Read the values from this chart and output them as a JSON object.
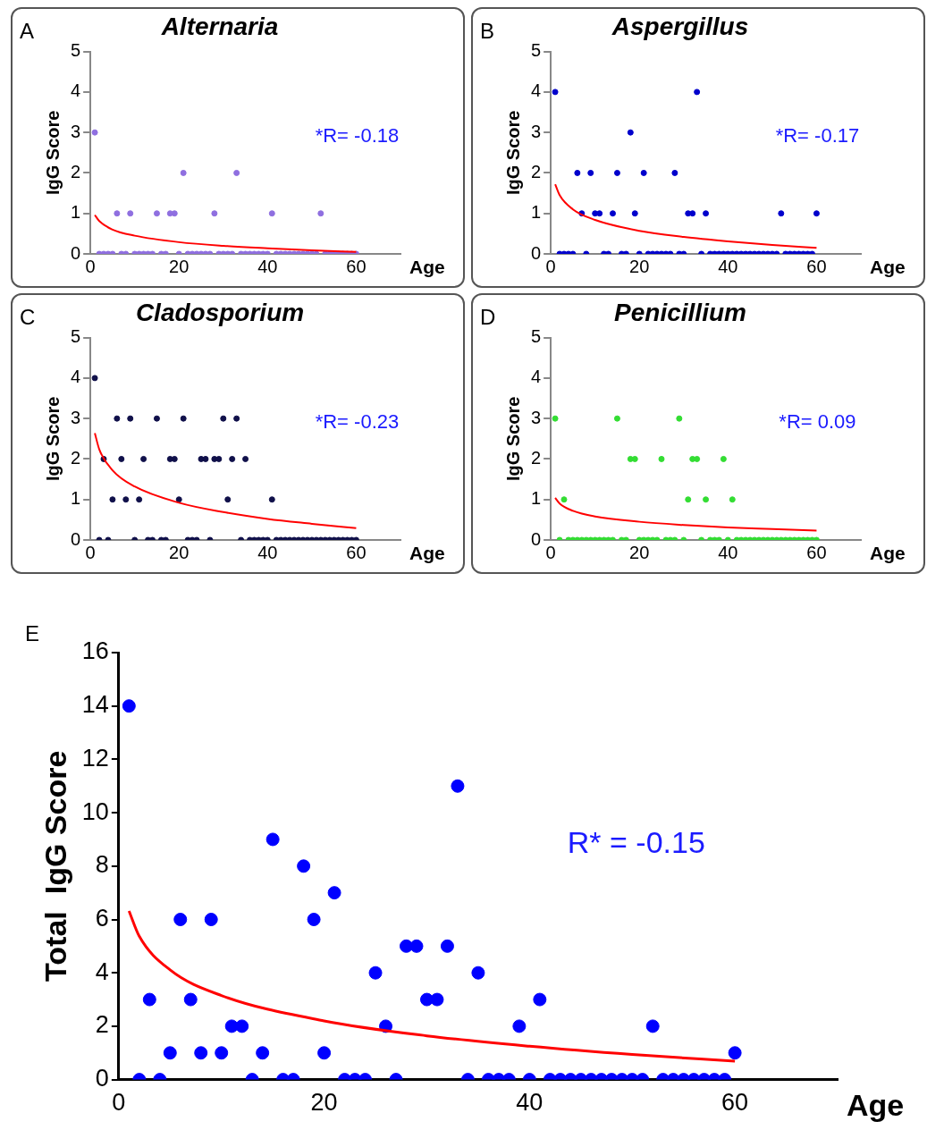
{
  "chart_data": [
    {
      "type": "scatter",
      "title": "Alternaria",
      "xlabel": "Age",
      "ylabel": "IgG Score",
      "annotations": [
        "A",
        "*R= -0.18"
      ],
      "x": [
        1,
        2,
        3,
        4,
        5,
        6,
        7,
        8,
        9,
        10,
        11,
        12,
        13,
        14,
        15,
        16,
        17,
        18,
        19,
        20,
        21,
        22,
        23,
        24,
        25,
        26,
        27,
        28,
        29,
        30,
        31,
        32,
        33,
        34,
        35,
        36,
        37,
        38,
        39,
        40,
        41,
        42,
        43,
        44,
        45,
        46,
        47,
        48,
        49,
        50,
        51,
        52,
        53,
        54,
        55,
        56,
        57,
        58,
        59,
        60
      ],
      "xlim": [
        0,
        70
      ],
      "xticks": [
        0,
        20,
        40,
        60
      ],
      "ylim": [
        0,
        5
      ],
      "yticks": [
        0,
        1,
        2,
        3,
        4,
        5
      ],
      "marker": "circle",
      "series": [
        {
          "color": "#8f6fe0",
          "values": [
            3,
            0,
            0,
            0,
            0,
            1,
            0,
            0,
            1,
            0,
            0,
            0,
            0,
            0,
            1,
            0,
            0,
            1,
            1,
            0,
            2,
            0,
            0,
            0,
            0,
            0,
            0,
            1,
            0,
            0,
            0,
            0,
            2,
            0,
            0,
            0,
            0,
            0,
            0,
            0,
            1,
            0,
            0,
            0,
            0,
            0,
            0,
            0,
            0,
            0,
            0,
            1,
            0,
            0,
            0,
            0,
            0,
            0,
            0,
            0
          ]
        },
        {
          "type": "line",
          "color": "#ff0000",
          "marker": "none",
          "x": [
            1,
            2,
            5,
            10,
            20,
            30,
            40,
            50,
            60
          ],
          "values": [
            0.96,
            0.81,
            0.6,
            0.45,
            0.29,
            0.2,
            0.14,
            0.09,
            0.05
          ]
        }
      ]
    },
    {
      "type": "scatter",
      "title": "Aspergillus",
      "xlabel": "Age",
      "ylabel": "IgG Score",
      "annotations": [
        "B",
        "*R= -0.17"
      ],
      "x": [
        1,
        2,
        3,
        4,
        5,
        6,
        7,
        8,
        9,
        10,
        11,
        12,
        13,
        14,
        15,
        16,
        17,
        18,
        19,
        20,
        21,
        22,
        23,
        24,
        25,
        26,
        27,
        28,
        29,
        30,
        31,
        32,
        33,
        34,
        35,
        36,
        37,
        38,
        39,
        40,
        41,
        42,
        43,
        44,
        45,
        46,
        47,
        48,
        49,
        50,
        51,
        52,
        53,
        54,
        55,
        56,
        57,
        58,
        59,
        60
      ],
      "xlim": [
        0,
        70
      ],
      "xticks": [
        0,
        20,
        40,
        60
      ],
      "ylim": [
        0,
        5
      ],
      "yticks": [
        0,
        1,
        2,
        3,
        4,
        5
      ],
      "marker": "circle",
      "series": [
        {
          "color": "#0000cc",
          "values": [
            4,
            0,
            0,
            0,
            0,
            2,
            1,
            0,
            2,
            1,
            1,
            0,
            0,
            1,
            2,
            0,
            0,
            3,
            1,
            0,
            2,
            0,
            0,
            0,
            0,
            0,
            0,
            2,
            0,
            0,
            1,
            1,
            4,
            0,
            1,
            0,
            0,
            0,
            0,
            0,
            0,
            0,
            0,
            0,
            0,
            0,
            0,
            0,
            0,
            0,
            0,
            1,
            0,
            0,
            0,
            0,
            0,
            0,
            0,
            1
          ]
        },
        {
          "type": "line",
          "color": "#ff0000",
          "marker": "none",
          "x": [
            1,
            2,
            5,
            10,
            20,
            30,
            40,
            50,
            60
          ],
          "values": [
            1.72,
            1.45,
            1.1,
            0.84,
            0.57,
            0.42,
            0.31,
            0.22,
            0.15
          ]
        }
      ]
    },
    {
      "type": "scatter",
      "title": "Cladosporium",
      "xlabel": "Age",
      "ylabel": "IgG Score",
      "annotations": [
        "C",
        "*R= -0.23"
      ],
      "x": [
        1,
        2,
        3,
        4,
        5,
        6,
        7,
        8,
        9,
        10,
        11,
        12,
        13,
        14,
        15,
        16,
        17,
        18,
        19,
        20,
        21,
        22,
        23,
        24,
        25,
        26,
        27,
        28,
        29,
        30,
        31,
        32,
        33,
        34,
        35,
        36,
        37,
        38,
        39,
        40,
        41,
        42,
        43,
        44,
        45,
        46,
        47,
        48,
        49,
        50,
        51,
        52,
        53,
        54,
        55,
        56,
        57,
        58,
        59,
        60
      ],
      "xlim": [
        0,
        70
      ],
      "xticks": [
        0,
        20,
        40,
        60
      ],
      "ylim": [
        0,
        5
      ],
      "yticks": [
        0,
        1,
        2,
        3,
        4,
        5
      ],
      "marker": "circle",
      "series": [
        {
          "color": "#10104a",
          "values": [
            4,
            0,
            2,
            0,
            1,
            3,
            2,
            1,
            3,
            0,
            1,
            2,
            0,
            0,
            3,
            0,
            0,
            2,
            2,
            1,
            3,
            0,
            0,
            0,
            2,
            2,
            0,
            2,
            2,
            3,
            1,
            2,
            3,
            0,
            2,
            0,
            0,
            0,
            0,
            0,
            1,
            0,
            0,
            0,
            0,
            0,
            0,
            0,
            0,
            0,
            0,
            0,
            0,
            0,
            0,
            0,
            0,
            0,
            0,
            0
          ]
        },
        {
          "type": "line",
          "color": "#ff0000",
          "marker": "none",
          "x": [
            1,
            2,
            5,
            10,
            20,
            30,
            40,
            50,
            60
          ],
          "values": [
            2.64,
            2.24,
            1.72,
            1.32,
            0.92,
            0.69,
            0.52,
            0.4,
            0.29
          ]
        }
      ]
    },
    {
      "type": "scatter",
      "title": "Penicillium",
      "xlabel": "Age",
      "ylabel": "IgG Score",
      "annotations": [
        "D",
        "*R= 0.09"
      ],
      "x": [
        1,
        2,
        3,
        4,
        5,
        6,
        7,
        8,
        9,
        10,
        11,
        12,
        13,
        14,
        15,
        16,
        17,
        18,
        19,
        20,
        21,
        22,
        23,
        24,
        25,
        26,
        27,
        28,
        29,
        30,
        31,
        32,
        33,
        34,
        35,
        36,
        37,
        38,
        39,
        40,
        41,
        42,
        43,
        44,
        45,
        46,
        47,
        48,
        49,
        50,
        51,
        52,
        53,
        54,
        55,
        56,
        57,
        58,
        59,
        60
      ],
      "xlim": [
        0,
        70
      ],
      "xticks": [
        0,
        20,
        40,
        60
      ],
      "ylim": [
        0,
        5
      ],
      "yticks": [
        0,
        1,
        2,
        3,
        4,
        5
      ],
      "marker": "circle",
      "series": [
        {
          "color": "#33dd33",
          "values": [
            3,
            0,
            1,
            0,
            0,
            0,
            0,
            0,
            0,
            0,
            0,
            0,
            0,
            0,
            3,
            0,
            0,
            2,
            2,
            0,
            0,
            0,
            0,
            0,
            2,
            0,
            0,
            0,
            3,
            0,
            1,
            2,
            2,
            0,
            1,
            0,
            0,
            0,
            2,
            0,
            1,
            0,
            0,
            0,
            0,
            0,
            0,
            0,
            0,
            0,
            0,
            0,
            0,
            0,
            0,
            0,
            0,
            0,
            0,
            0
          ]
        },
        {
          "type": "line",
          "color": "#ff0000",
          "marker": "none",
          "x": [
            1,
            2,
            5,
            10,
            20,
            30,
            40,
            50,
            60
          ],
          "values": [
            1.04,
            0.9,
            0.72,
            0.58,
            0.45,
            0.37,
            0.31,
            0.27,
            0.23
          ]
        }
      ]
    },
    {
      "type": "scatter",
      "xlabel": "Age",
      "ylabel": "Total  IgG Score",
      "annotations": [
        "E",
        "R* = -0.15"
      ],
      "x": [
        1,
        2,
        3,
        4,
        5,
        6,
        7,
        8,
        9,
        10,
        11,
        12,
        13,
        14,
        15,
        16,
        17,
        18,
        19,
        20,
        21,
        22,
        23,
        24,
        25,
        26,
        27,
        28,
        29,
        30,
        31,
        32,
        33,
        34,
        35,
        36,
        37,
        38,
        39,
        40,
        41,
        42,
        43,
        44,
        45,
        46,
        47,
        48,
        49,
        50,
        51,
        52,
        53,
        54,
        55,
        56,
        57,
        58,
        59,
        60
      ],
      "xlim": [
        0,
        70
      ],
      "xticks": [
        0,
        20,
        40,
        60
      ],
      "ylim": [
        0,
        16
      ],
      "yticks": [
        0,
        2,
        4,
        6,
        8,
        10,
        12,
        14,
        16
      ],
      "marker": "circle",
      "series": [
        {
          "color": "#0000ff",
          "values": [
            14,
            0,
            3,
            0,
            1,
            6,
            3,
            1,
            6,
            1,
            2,
            2,
            0,
            1,
            9,
            0,
            0,
            8,
            6,
            1,
            7,
            0,
            0,
            0,
            4,
            2,
            0,
            5,
            5,
            3,
            3,
            5,
            11,
            0,
            4,
            0,
            0,
            0,
            2,
            0,
            3,
            0,
            0,
            0,
            0,
            0,
            0,
            0,
            0,
            0,
            0,
            2,
            0,
            0,
            0,
            0,
            0,
            0,
            0,
            1
          ]
        },
        {
          "type": "line",
          "color": "#ff0000",
          "marker": "none",
          "x": [
            1,
            2,
            5,
            10,
            20,
            30,
            40,
            50,
            60
          ],
          "values": [
            6.32,
            5.37,
            4.11,
            3.15,
            2.2,
            1.64,
            1.25,
            0.94,
            0.69
          ]
        }
      ]
    }
  ]
}
